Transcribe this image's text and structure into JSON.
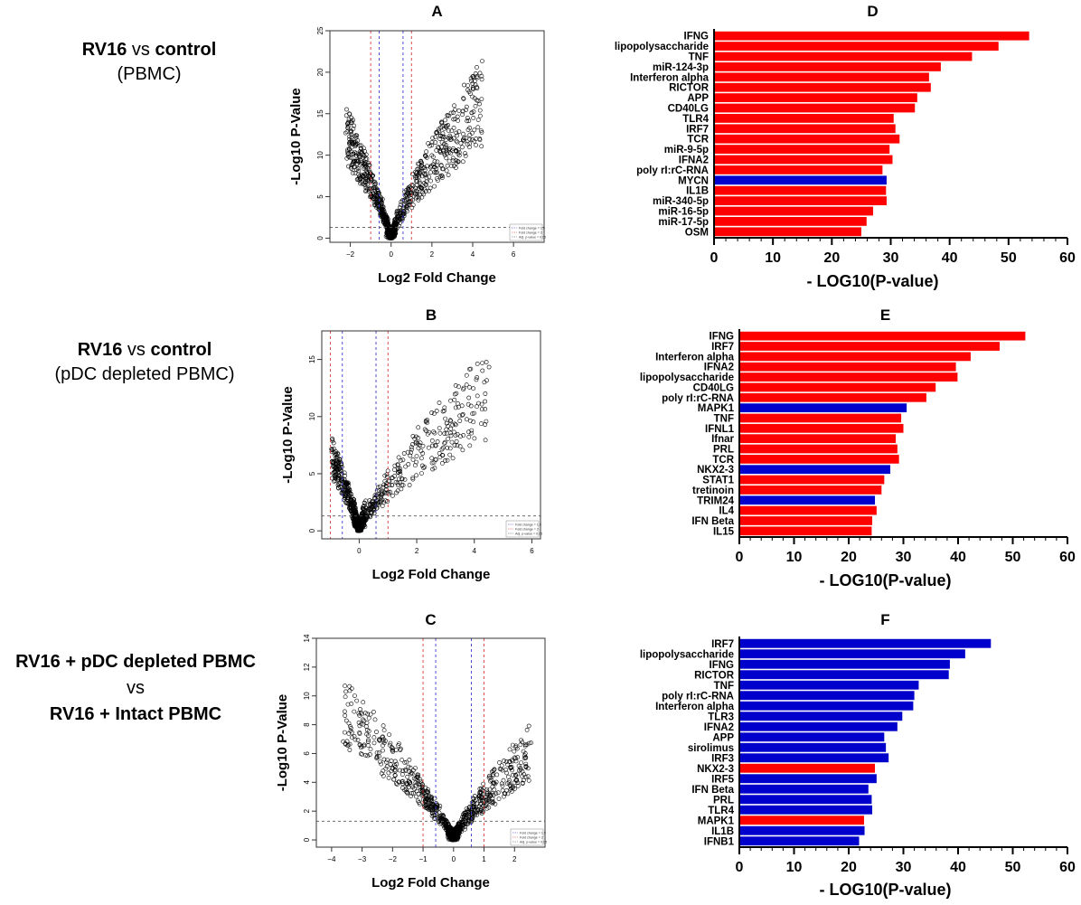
{
  "row_labels": [
    {
      "line1_bold": "RV16",
      "line1_rest": " vs ",
      "line1_bold2": "control",
      "line2": "(PBMC)"
    },
    {
      "line1_bold": "RV16",
      "line1_rest": " vs ",
      "line1_bold2": "control",
      "line2": "(pDC depleted PBMC)"
    },
    {
      "line1": "RV16 + pDC depleted PBMC",
      "line2": "vs",
      "line3": "RV16 + Intact PBMC"
    }
  ],
  "colors": {
    "up": "#ff0000",
    "down": "#0000cc",
    "points": "#000000",
    "fc15": "#3a3ad0",
    "fc2": "#d83a3a"
  },
  "chart_data": [
    {
      "id": "A",
      "type": "scatter",
      "title": "A",
      "xlabel": "Log2 Fold Change",
      "ylabel": "-Log10 P-Value",
      "xlim": [
        -3,
        7.5
      ],
      "ylim": [
        -0.5,
        25
      ],
      "xticks": [
        -2,
        0,
        2,
        4,
        6
      ],
      "yticks": [
        0,
        5,
        10,
        15,
        20,
        25
      ],
      "fc15": 0.585,
      "fc2": 1,
      "padj_line": 1.3,
      "legend": [
        "Fold change = 1.5",
        "Fold change = 2",
        "Adj. p-value = 0.05"
      ],
      "shape": {
        "left_x": -2.2,
        "left_y": 16,
        "right_x": 4.5,
        "right_y": 22,
        "n": 900
      }
    },
    {
      "id": "B",
      "type": "scatter",
      "title": "B",
      "xlabel": "Log2 Fold Change",
      "ylabel": "-Log10 P-Value",
      "xlim": [
        -1.3,
        6.3
      ],
      "ylim": [
        -0.7,
        17.5
      ],
      "xticks": [
        0,
        2,
        4,
        6
      ],
      "yticks": [
        0,
        5,
        10,
        15
      ],
      "fc15": 0.585,
      "fc2": 1,
      "padj_line": 1.3,
      "legend": [
        "Fold change = 1.5",
        "Fold change = 2",
        "Adj. p-value = 0.05"
      ],
      "shape": {
        "left_x": -0.95,
        "left_y": 8.5,
        "right_x": 4.5,
        "right_y": 16,
        "n": 700
      }
    },
    {
      "id": "C",
      "type": "scatter",
      "title": "C",
      "xlabel": "Log2 Fold Change",
      "ylabel": "-Log10 P-Value",
      "xlim": [
        -4.5,
        3.0
      ],
      "ylim": [
        -0.5,
        14
      ],
      "xticks": [
        -4,
        -3,
        -2,
        -1,
        0,
        1,
        2
      ],
      "yticks": [
        0,
        2,
        4,
        6,
        8,
        10,
        12,
        14
      ],
      "fc15": 0.585,
      "fc2": 1,
      "padj_line": 1.3,
      "legend": [
        "Fold change = 1.5",
        "Fold change = 2",
        "Adj. p-value = 0.05"
      ],
      "shape": {
        "left_x": -3.6,
        "left_y": 11.5,
        "right_x": 2.5,
        "right_y": 8,
        "n": 800
      }
    },
    {
      "id": "D",
      "type": "bar",
      "title": "D",
      "xlabel": "- LOG10(P-value)",
      "xlim": [
        0,
        60
      ],
      "xticks": [
        0,
        10,
        20,
        30,
        40,
        50,
        60
      ],
      "categories": [
        "IFNG",
        "lipopolysaccharide",
        "TNF",
        "miR-124-3p",
        "Interferon alpha",
        "RICTOR",
        "APP",
        "CD40LG",
        "TLR4",
        "IRF7",
        "TCR",
        "miR-9-5p",
        "IFNA2",
        "poly rI:rC-RNA",
        "MYCN",
        "IL1B",
        "miR-340-5p",
        "miR-16-5p",
        "miR-17-5p",
        "OSM"
      ],
      "values": [
        53.5,
        48.3,
        43.8,
        38.5,
        36.5,
        36.8,
        34.5,
        34.1,
        30.5,
        30.8,
        31.5,
        29.8,
        30.3,
        28.6,
        29.3,
        29.2,
        29.3,
        27.0,
        25.9,
        25.0
      ],
      "directions": [
        "up",
        "up",
        "up",
        "up",
        "up",
        "up",
        "up",
        "up",
        "up",
        "up",
        "up",
        "up",
        "up",
        "up",
        "down",
        "up",
        "up",
        "up",
        "up",
        "up"
      ]
    },
    {
      "id": "E",
      "type": "bar",
      "title": "E",
      "xlabel": "- LOG10(P-value)",
      "xlim": [
        0,
        60
      ],
      "xticks": [
        0,
        10,
        20,
        30,
        40,
        50,
        60
      ],
      "categories": [
        "IFNG",
        "IRF7",
        "Interferon alpha",
        "IFNA2",
        "lipopolysaccharide",
        "CD40LG",
        "poly rI:rC-RNA",
        "MAPK1",
        "TNF",
        "IFNL1",
        "Ifnar",
        "PRL",
        "TCR",
        "NKX2-3",
        "STAT1",
        "tretinoin",
        "TRIM24",
        "IL4",
        "IFN Beta",
        "IL15"
      ],
      "values": [
        52.3,
        47.6,
        42.3,
        39.6,
        39.9,
        35.9,
        34.2,
        30.6,
        29.6,
        30.0,
        28.6,
        28.9,
        29.2,
        27.6,
        26.5,
        26.0,
        24.8,
        25.1,
        24.3,
        24.2
      ],
      "directions": [
        "up",
        "up",
        "up",
        "up",
        "up",
        "up",
        "up",
        "down",
        "up",
        "up",
        "up",
        "up",
        "up",
        "down",
        "up",
        "up",
        "down",
        "up",
        "up",
        "up"
      ]
    },
    {
      "id": "F",
      "type": "bar",
      "title": "F",
      "xlabel": "- LOG10(P-value)",
      "xlim": [
        0,
        60
      ],
      "xticks": [
        0,
        10,
        20,
        30,
        40,
        50,
        60
      ],
      "categories": [
        "IRF7",
        "lipopolysaccharide",
        "IFNG",
        "RICTOR",
        "TNF",
        "poly rI:rC-RNA",
        "Interferon alpha",
        "TLR3",
        "IFNA2",
        "APP",
        "sirolimus",
        "IRF3",
        "NKX2-3",
        "IRF5",
        "IFN Beta",
        "PRL",
        "TLR4",
        "MAPK1",
        "IL1B",
        "IFNB1"
      ],
      "values": [
        46.0,
        41.3,
        38.5,
        38.3,
        32.8,
        32.0,
        31.8,
        29.8,
        28.9,
        26.5,
        26.8,
        27.3,
        24.8,
        25.1,
        23.6,
        24.2,
        24.3,
        22.8,
        22.9,
        21.9
      ],
      "directions": [
        "down",
        "down",
        "down",
        "down",
        "down",
        "down",
        "down",
        "down",
        "down",
        "down",
        "down",
        "down",
        "up",
        "down",
        "down",
        "down",
        "down",
        "up",
        "down",
        "down"
      ]
    }
  ]
}
